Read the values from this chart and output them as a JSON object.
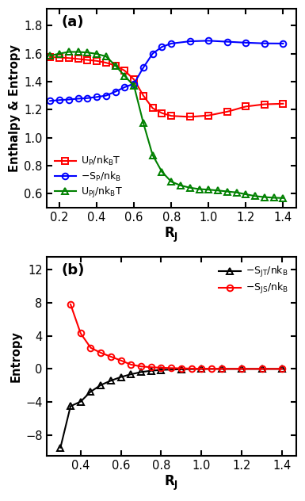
{
  "panel_a": {
    "title": "(a)",
    "xlabel": "R_J",
    "ylabel": "Enthalpy & Entropy",
    "xlim": [
      0.13,
      1.47
    ],
    "ylim": [
      0.5,
      1.92
    ],
    "yticks": [
      0.6,
      0.8,
      1.0,
      1.2,
      1.4,
      1.6,
      1.8
    ],
    "xticks": [
      0.2,
      0.4,
      0.6,
      0.8,
      1.0,
      1.2,
      1.4
    ],
    "UP_x": [
      0.15,
      0.2,
      0.25,
      0.3,
      0.35,
      0.4,
      0.45,
      0.5,
      0.55,
      0.6,
      0.65,
      0.7,
      0.75,
      0.8,
      0.9,
      1.0,
      1.1,
      1.2,
      1.3,
      1.4
    ],
    "UP_y": [
      1.575,
      1.572,
      1.568,
      1.562,
      1.555,
      1.548,
      1.535,
      1.515,
      1.478,
      1.415,
      1.3,
      1.21,
      1.175,
      1.155,
      1.148,
      1.158,
      1.185,
      1.222,
      1.238,
      1.242
    ],
    "SP_x": [
      0.15,
      0.2,
      0.25,
      0.3,
      0.35,
      0.4,
      0.45,
      0.5,
      0.55,
      0.6,
      0.65,
      0.7,
      0.75,
      0.8,
      0.9,
      1.0,
      1.1,
      1.2,
      1.3,
      1.4
    ],
    "SP_y": [
      1.262,
      1.268,
      1.272,
      1.278,
      1.282,
      1.29,
      1.3,
      1.328,
      1.36,
      1.385,
      1.5,
      1.6,
      1.648,
      1.672,
      1.688,
      1.692,
      1.685,
      1.678,
      1.673,
      1.672
    ],
    "UPJ_x": [
      0.15,
      0.2,
      0.25,
      0.3,
      0.35,
      0.4,
      0.45,
      0.5,
      0.55,
      0.6,
      0.65,
      0.7,
      0.75,
      0.8,
      0.85,
      0.9,
      0.95,
      1.0,
      1.05,
      1.1,
      1.15,
      1.2,
      1.25,
      1.3,
      1.35,
      1.4
    ],
    "UPJ_y": [
      1.585,
      1.6,
      1.612,
      1.612,
      1.608,
      1.598,
      1.58,
      1.515,
      1.44,
      1.37,
      1.105,
      0.875,
      0.755,
      0.685,
      0.658,
      0.642,
      0.632,
      0.628,
      0.622,
      0.615,
      0.608,
      0.595,
      0.582,
      0.575,
      0.57,
      0.568
    ]
  },
  "panel_b": {
    "title": "(b)",
    "xlabel": "R_J",
    "ylabel": "Entropy",
    "xlim": [
      0.23,
      1.47
    ],
    "ylim": [
      -10.5,
      13.5
    ],
    "yticks": [
      -8,
      -4,
      0,
      4,
      8,
      12
    ],
    "xticks": [
      0.4,
      0.6,
      0.8,
      1.0,
      1.2,
      1.4
    ],
    "SJT_x": [
      0.3,
      0.35,
      0.4,
      0.45,
      0.5,
      0.55,
      0.6,
      0.65,
      0.7,
      0.75,
      0.8,
      0.9,
      1.0,
      1.1,
      1.2,
      1.3,
      1.4
    ],
    "SJT_y": [
      -9.5,
      -4.5,
      -3.95,
      -2.75,
      -1.95,
      -1.42,
      -0.98,
      -0.65,
      -0.38,
      -0.22,
      -0.12,
      -0.04,
      -0.01,
      0.0,
      0.0,
      0.0,
      0.0
    ],
    "SJS_x": [
      0.35,
      0.4,
      0.45,
      0.5,
      0.55,
      0.6,
      0.65,
      0.7,
      0.75,
      0.8,
      0.85,
      0.9,
      0.95,
      1.0,
      1.05,
      1.1,
      1.2,
      1.3,
      1.4
    ],
    "SJS_y": [
      7.8,
      4.3,
      2.55,
      1.95,
      1.48,
      1.02,
      0.52,
      0.3,
      0.2,
      0.14,
      0.1,
      0.07,
      0.04,
      0.025,
      0.015,
      0.01,
      0.005,
      0.002,
      0.001
    ]
  }
}
